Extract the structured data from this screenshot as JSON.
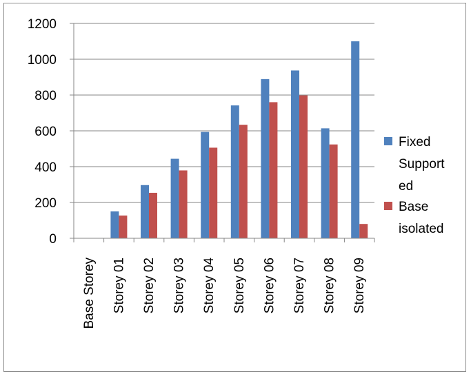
{
  "chart_data": {
    "type": "bar",
    "title": "",
    "xlabel": "",
    "ylabel": "",
    "categories": [
      "Base Storey",
      "Storey 01",
      "Storey 02",
      "Storey 03",
      "Storey 04",
      "Storey 05",
      "Storey 06",
      "Storey 07",
      "Storey 08",
      "Storey 09"
    ],
    "series": [
      {
        "name": "Fixed Supported",
        "legend_lines": [
          "Fixed",
          "Support",
          "ed"
        ],
        "color": "#4f81bd",
        "values": [
          0,
          150,
          297,
          444,
          594,
          742,
          889,
          937,
          614,
          1100
        ]
      },
      {
        "name": "Base isolated",
        "legend_lines": [
          "Base",
          "isolated"
        ],
        "color": "#c0504d",
        "values": [
          0,
          127,
          254,
          379,
          506,
          634,
          760,
          798,
          524,
          80
        ]
      }
    ],
    "ylim": [
      0,
      1200
    ],
    "yticks": [
      0,
      200,
      400,
      600,
      800,
      1000,
      1200
    ],
    "grid": true,
    "legend_position": "right"
  }
}
